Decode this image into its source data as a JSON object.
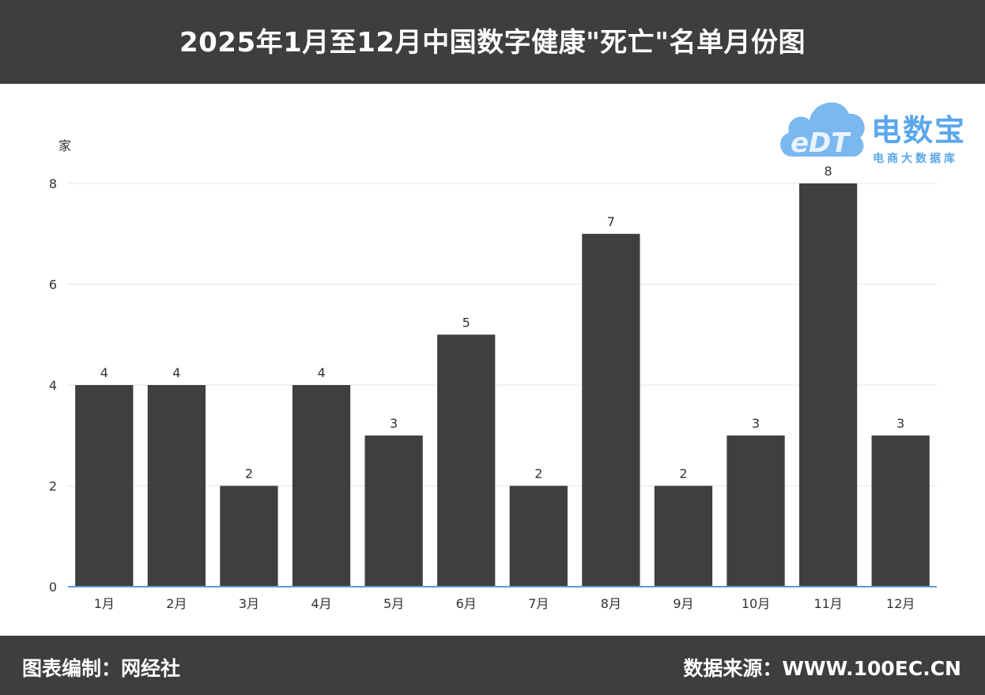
{
  "header": {
    "title": "2025年1月至12月中国数字健康\"死亡\"名单月份图"
  },
  "logo": {
    "mark": "eDT",
    "name": "电数宝",
    "subtitle": "电商大数据库",
    "icon": "cloud-icon"
  },
  "footer": {
    "left": "图表编制：网经社",
    "right": "数据来源：WWW.100EC.CN"
  },
  "colors": {
    "bar": "#3f3f3f",
    "header_bg": "#3e3e3e",
    "axis_line": "#5b9bd5",
    "grid": "#e6e6e6",
    "logo_blue": "#5aa7ec"
  },
  "chart_data": {
    "type": "bar",
    "title": "2025年1月至12月中国数字健康\"死亡\"名单月份图",
    "ylabel": "家",
    "xlabel": "",
    "categories": [
      "1月",
      "2月",
      "3月",
      "4月",
      "5月",
      "6月",
      "7月",
      "8月",
      "9月",
      "10月",
      "11月",
      "12月"
    ],
    "values": [
      4,
      4,
      2,
      4,
      3,
      5,
      2,
      7,
      2,
      3,
      8,
      3
    ],
    "ylim": [
      0,
      8
    ],
    "yticks": [
      0,
      2,
      4,
      6,
      8
    ],
    "grid": true,
    "data_labels": true,
    "legend": "none"
  }
}
